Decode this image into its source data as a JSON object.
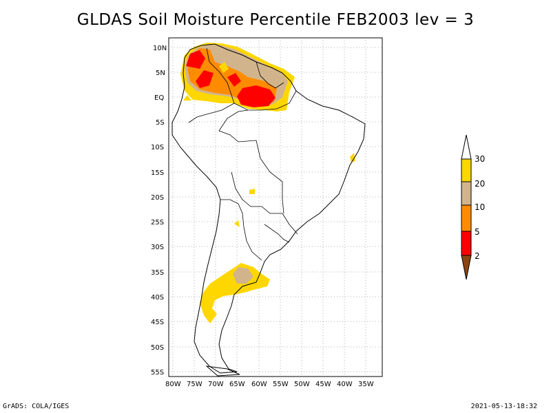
{
  "title": "GLDAS Soil Moisture Percentile FEB2003 lev = 3",
  "credit": "GrADS: COLA/IGES",
  "timestamp": "2021-05-13-18:32",
  "map": {
    "lon_range": [
      -80,
      -32
    ],
    "lat_range": [
      -56,
      12
    ],
    "lat_ticks": [
      "10N",
      "5N",
      "EQ",
      "5S",
      "10S",
      "15S",
      "20S",
      "25S",
      "30S",
      "35S",
      "40S",
      "45S",
      "50S",
      "55S"
    ],
    "lon_ticks": [
      "80W",
      "75W",
      "70W",
      "65W",
      "60W",
      "55W",
      "50W",
      "45W",
      "40W",
      "35W"
    ]
  },
  "colorbar": {
    "labels": [
      "30",
      "20",
      "10",
      "5",
      "2"
    ],
    "colors": {
      "top": "#ffffff",
      "c30": "#ffd700",
      "c20": "#d2b48c",
      "c10": "#ff8c00",
      "c5": "#ff0000",
      "c2": "#8b4513"
    }
  }
}
